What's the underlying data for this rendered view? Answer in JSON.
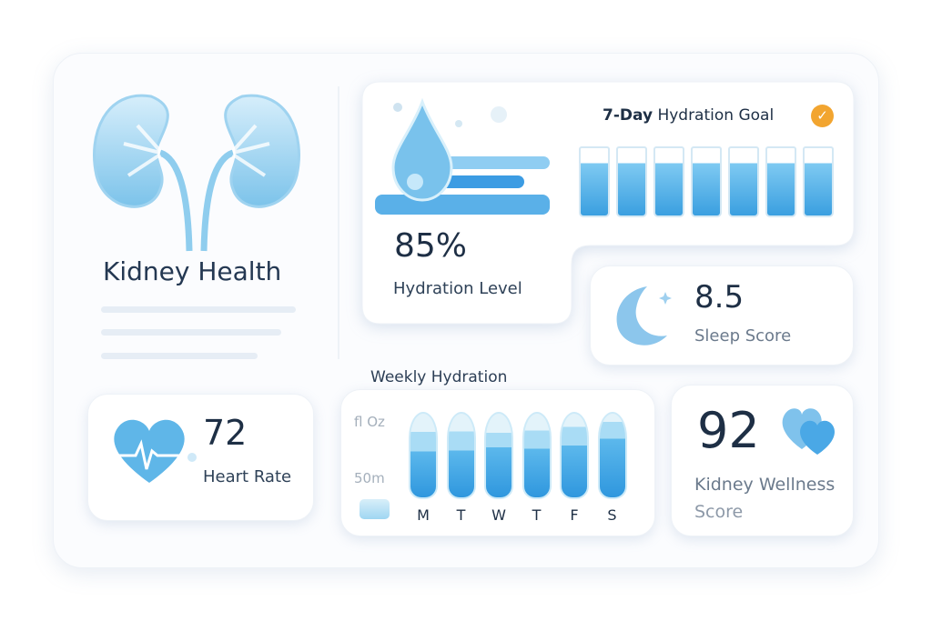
{
  "app": {
    "title": "Kidney Health"
  },
  "hydration": {
    "value": "85%",
    "label": "Hydration Level",
    "goal_title_bold": "7-Day",
    "goal_title_rest": "Hydration Goal",
    "goal_icon": "check-circle-icon",
    "goal_glasses": 7,
    "accent": "#3a9ee0",
    "check_color": "#f2a530"
  },
  "sleep": {
    "value": "8.5",
    "label": "Sleep Score",
    "icon": "moon-icon"
  },
  "heart": {
    "value": "72",
    "label": "Heart Rate",
    "icon": "heart-pulse-icon"
  },
  "wellness": {
    "value": "92",
    "label_line1": "Kidney Wellness",
    "label_line2": "Score",
    "icon": "hearts-icon"
  },
  "chart_data": {
    "type": "bar",
    "title": "Weekly Hydration",
    "categories": [
      "M",
      "T",
      "W",
      "T",
      "F",
      "S"
    ],
    "y_tick_labels": [
      "fl Oz",
      "50m"
    ],
    "values": [
      0.55,
      0.56,
      0.6,
      0.58,
      0.62,
      0.7
    ],
    "secondary_values": [
      0.78,
      0.79,
      0.77,
      0.8,
      0.84,
      0.9
    ],
    "colors": {
      "fill": "#3aa4e4",
      "light": "#a9dcf5"
    }
  }
}
